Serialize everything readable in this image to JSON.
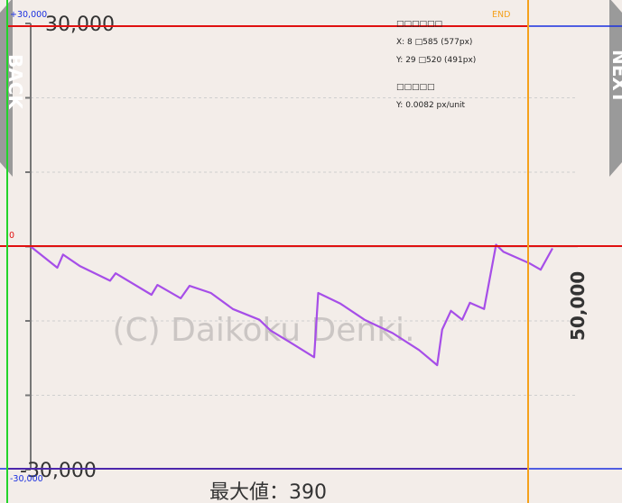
{
  "chart_data": {
    "type": "line",
    "title": "",
    "xlabel": "",
    "ylabel": "",
    "ylim": [
      -30000,
      30000
    ],
    "y_tick_labels": [
      "30,000",
      "-30,000"
    ],
    "x_tick_labels": [
      "50,000"
    ],
    "grid": true,
    "watermark": "(C) Daikoku Denki.",
    "footer": "最大値：390",
    "series": [
      {
        "color": "#a64ee8",
        "points": [
          [
            0,
            0
          ],
          [
            3440,
            -2850
          ],
          [
            4170,
            -1080
          ],
          [
            6370,
            -2640
          ],
          [
            10240,
            -4590
          ],
          [
            10970,
            -3600
          ],
          [
            15600,
            -6480
          ],
          [
            16360,
            -5160
          ],
          [
            19370,
            -6960
          ],
          [
            20500,
            -5280
          ],
          [
            23260,
            -6240
          ],
          [
            26100,
            -8400
          ],
          [
            29520,
            -9840
          ],
          [
            30960,
            -11280
          ],
          [
            34000,
            -13200
          ],
          [
            36600,
            -14880
          ],
          [
            37120,
            -6240
          ],
          [
            40000,
            -7680
          ],
          [
            43100,
            -9840
          ],
          [
            46730,
            -11640
          ],
          [
            50140,
            -13920
          ],
          [
            52490,
            -15950
          ],
          [
            53130,
            -11160
          ],
          [
            54260,
            -8640
          ],
          [
            55720,
            -9840
          ],
          [
            56700,
            -7560
          ],
          [
            58530,
            -8400
          ],
          [
            60080,
            240
          ],
          [
            61050,
            -720
          ],
          [
            64450,
            -2280
          ],
          [
            65840,
            -3120
          ],
          [
            67370,
            -240
          ]
        ]
      }
    ]
  },
  "overlay": {
    "box_title": "□□□□□□",
    "x_range": "X: 8 □585 (577px)",
    "y_range": "Y: 29 □520 (491px)",
    "scale_title": "□□□□□",
    "scale": "Y: 0.0082 px/unit",
    "top_value": "+30,000",
    "bottom_value": "-30,000",
    "zero_label": "0",
    "end_label": "END"
  },
  "nav": {
    "back": "BACK",
    "next": "NEXT"
  },
  "colors": {
    "background": "#f3ede9",
    "line": "#a64ee8",
    "overlay_red": "#e01010",
    "overlay_blue": "#1a2fe0",
    "overlay_green": "#22d42a",
    "overlay_orange": "#f4a11c",
    "text": "#333333",
    "grid": "#cccccc",
    "watermark": "#cbc6c4"
  }
}
